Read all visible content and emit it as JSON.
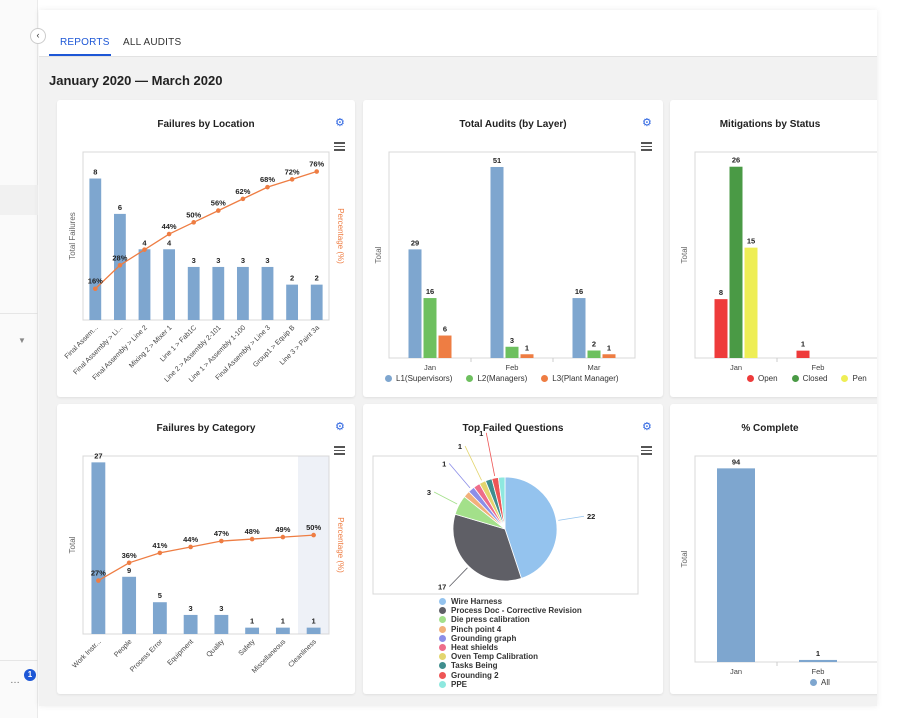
{
  "tabs": {
    "reports": "REPORTS",
    "all_audits": "ALL AUDITS"
  },
  "sidebar": {
    "notification_count": "1",
    "more_icon": "ellipsis-icon",
    "collapse_icon": "chevron-left-icon"
  },
  "date_range": "January 2020 — March 2020",
  "icons": {
    "settings": "gear-icon",
    "export_menu": "hamburger-icon"
  },
  "cards": {
    "failures_by_location": "Failures by Location",
    "total_audits": "Total Audits (by Layer)",
    "mitigations": "Mitigations by Status",
    "failures_by_category": "Failures by Category",
    "top_failed": "Top Failed Questions",
    "pct_complete": "% Complete"
  },
  "chart_data": [
    {
      "id": "failures_by_location",
      "type": "bar",
      "title": "Failures by Location",
      "ylabel": "Total Failures",
      "y2label": "Percentage (%)",
      "categories": [
        "Final Assem...",
        "Final Assembly > Li...",
        "Final Assembly > Line 2",
        "Mixing 2 > Mixer 1",
        "Line 1 > Fab1C",
        "Line 2 > Assembly 2-101",
        "Line 1 > Assembly 1-100",
        "Final Assembly > Line 3",
        "Group1 > Equip B",
        "Line 3 > Paint 3a"
      ],
      "series": [
        {
          "name": "Failures",
          "type": "bar",
          "values": [
            8,
            6,
            4,
            4,
            3,
            3,
            3,
            3,
            2,
            2
          ]
        },
        {
          "name": "Percentage",
          "type": "line",
          "values": [
            16,
            28,
            36,
            44,
            50,
            56,
            62,
            68,
            72,
            76
          ],
          "labels": [
            "16%",
            "28%",
            "",
            "44%",
            "50%",
            "56%",
            "62%",
            "68%",
            "72%",
            "76%"
          ]
        }
      ],
      "ylim": [
        0,
        9.5
      ],
      "y2lim": [
        0,
        86
      ],
      "colors": {
        "bar": "#7ea6cf",
        "line": "#ee7d43"
      }
    },
    {
      "id": "total_audits",
      "type": "bar",
      "title": "Total Audits (by Layer)",
      "ylabel": "Total",
      "categories": [
        "Jan",
        "Feb",
        "Mar"
      ],
      "series": [
        {
          "name": "L1(Supervisors)",
          "values": [
            29,
            51,
            16
          ],
          "color": "#7ea6cf"
        },
        {
          "name": "L2(Managers)",
          "values": [
            16,
            3,
            2
          ],
          "color": "#6ec05f"
        },
        {
          "name": "L3(Plant Manager)",
          "values": [
            6,
            1,
            1
          ],
          "color": "#ee7d43"
        }
      ],
      "ylim": [
        0,
        55
      ],
      "legend": "bottom"
    },
    {
      "id": "mitigations",
      "type": "bar",
      "title": "Mitigations by Status",
      "ylabel": "Total",
      "categories": [
        "Jan",
        "Feb"
      ],
      "series": [
        {
          "name": "Open",
          "values": [
            8,
            1
          ],
          "color": "#ee3b3b"
        },
        {
          "name": "Closed",
          "values": [
            26,
            0
          ],
          "color": "#4a9a45"
        },
        {
          "name": "Pen",
          "values": [
            15,
            0
          ],
          "color": "#eeee55"
        }
      ],
      "ylim": [
        0,
        28
      ],
      "legend": "bottom"
    },
    {
      "id": "failures_by_category",
      "type": "bar",
      "title": "Failures by Category",
      "ylabel": "Total",
      "y2label": "Percentage (%)",
      "categories": [
        "Work Instr...",
        "People",
        "Process Error",
        "Equipment",
        "Quality",
        "Safety",
        "Miscellaneous",
        "Cleanliness"
      ],
      "series": [
        {
          "name": "Failures",
          "type": "bar",
          "values": [
            27,
            9,
            5,
            3,
            3,
            1,
            1,
            1
          ]
        },
        {
          "name": "Percentage",
          "type": "line",
          "values": [
            27,
            36,
            41,
            44,
            47,
            48,
            49,
            50
          ],
          "labels": [
            "27%",
            "36%",
            "41%",
            "44%",
            "47%",
            "48%",
            "49%",
            "50%"
          ]
        }
      ],
      "ylim": [
        0,
        28
      ],
      "y2lim": [
        0,
        90
      ],
      "colors": {
        "bar": "#7ea6cf",
        "line": "#ee7d43"
      }
    },
    {
      "id": "top_failed",
      "type": "pie",
      "title": "Top Failed Questions",
      "slices": [
        {
          "name": "Wire Harness",
          "value": 22,
          "label": "22",
          "color": "#94c3ee"
        },
        {
          "name": "Process Doc - Corrective Revision",
          "value": 17,
          "label": "17",
          "color": "#5f5f66"
        },
        {
          "name": "Die press calibration",
          "value": 3,
          "label": "3",
          "color": "#a3e08a"
        },
        {
          "name": "Pinch point 4",
          "value": 1,
          "label": "",
          "color": "#f2b07a"
        },
        {
          "name": "Grounding graph",
          "value": 1,
          "label": "1",
          "color": "#8c8ee8"
        },
        {
          "name": "Heat shields",
          "value": 1,
          "label": "",
          "color": "#ee6d8a"
        },
        {
          "name": "Oven Temp Calibration",
          "value": 1,
          "label": "1",
          "color": "#e3d56e"
        },
        {
          "name": "Tasks Being",
          "value": 1,
          "label": "",
          "color": "#3f8e8e"
        },
        {
          "name": "Grounding 2",
          "value": 1,
          "label": "1",
          "color": "#ee5555"
        },
        {
          "name": "PPE",
          "value": 1,
          "label": "",
          "color": "#8ee8df"
        }
      ],
      "legend": "bottom"
    },
    {
      "id": "pct_complete",
      "type": "bar",
      "title": "% Complete",
      "ylabel": "Total",
      "categories": [
        "Jan",
        "Feb"
      ],
      "series": [
        {
          "name": "All",
          "values": [
            94,
            1
          ],
          "color": "#7ea6cf"
        }
      ],
      "ylim": [
        0,
        100
      ],
      "legend": "bottom"
    }
  ]
}
